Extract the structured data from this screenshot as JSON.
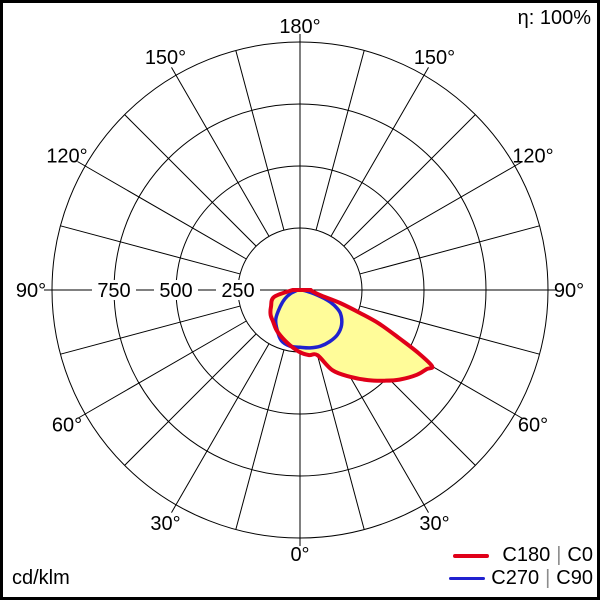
{
  "eta_label": "η: 100%",
  "unit_label": "cd/klm",
  "legend": {
    "items": [
      {
        "left": "C180",
        "sep": "|",
        "right": "C0",
        "color": "#e00019"
      },
      {
        "left": "C270",
        "sep": "|",
        "right": "C90",
        "color": "#2021cf"
      }
    ]
  },
  "colors": {
    "grid": "#000000",
    "text": "#000000",
    "fill": "#fffc99",
    "frame": "#000000",
    "separator": "#8c8c8c"
  },
  "chart_data": {
    "type": "polar",
    "units": "cd/klm",
    "efficiency": "100%",
    "rmax": 1000,
    "grid_step_deg": 15,
    "label_step_deg": 30,
    "rings": [
      250,
      500,
      750,
      1000
    ],
    "ring_labels": [
      {
        "text": "750",
        "value": 750
      },
      {
        "text": "500",
        "value": 500
      },
      {
        "text": "250",
        "value": 250
      }
    ],
    "angle_labels": [
      {
        "angle": 0,
        "text": "0°"
      },
      {
        "angle": 30,
        "text": "30°"
      },
      {
        "angle": 60,
        "text": "60°"
      },
      {
        "angle": 90,
        "text": "90°"
      },
      {
        "angle": 120,
        "text": "120°"
      },
      {
        "angle": 150,
        "text": "150°"
      },
      {
        "angle": 180,
        "text": "180°"
      }
    ],
    "series": [
      {
        "name": "C180 | C0",
        "color": "#e00019",
        "stroke_width": 4,
        "fill": "#fffc99",
        "points": [
          [
            -90,
            30
          ],
          [
            -75,
            108
          ],
          [
            -60,
            135
          ],
          [
            -50,
            155
          ],
          [
            -40,
            168
          ],
          [
            -30,
            188
          ],
          [
            -20,
            206
          ],
          [
            -10,
            227
          ],
          [
            0,
            251
          ],
          [
            8,
            265
          ],
          [
            15,
            272
          ],
          [
            22,
            349
          ],
          [
            30,
            404
          ],
          [
            37,
            455
          ],
          [
            43,
            500
          ],
          [
            48,
            540
          ],
          [
            54,
            582
          ],
          [
            58,
            602
          ],
          [
            60,
            615
          ],
          [
            62,
            540
          ],
          [
            64,
            448
          ],
          [
            67,
            345
          ],
          [
            69,
            260
          ],
          [
            72,
            170
          ],
          [
            75,
            92
          ],
          [
            80,
            60
          ],
          [
            85,
            48
          ],
          [
            90,
            44
          ]
        ]
      },
      {
        "name": "C270 | C90",
        "color": "#2021cf",
        "stroke_width": 3.5,
        "fill": "#fffc99",
        "points": [
          [
            -85,
            12
          ],
          [
            -70,
            40
          ],
          [
            -60,
            70
          ],
          [
            -50,
            104
          ],
          [
            -40,
            152
          ],
          [
            -30,
            185
          ],
          [
            -20,
            218
          ],
          [
            -10,
            230
          ],
          [
            0,
            231
          ],
          [
            10,
            237
          ],
          [
            20,
            241
          ],
          [
            30,
            240
          ],
          [
            40,
            235
          ],
          [
            50,
            219
          ],
          [
            60,
            188
          ],
          [
            66,
            150
          ],
          [
            70,
            115
          ],
          [
            75,
            60
          ],
          [
            80,
            28
          ],
          [
            85,
            12
          ]
        ]
      }
    ]
  }
}
